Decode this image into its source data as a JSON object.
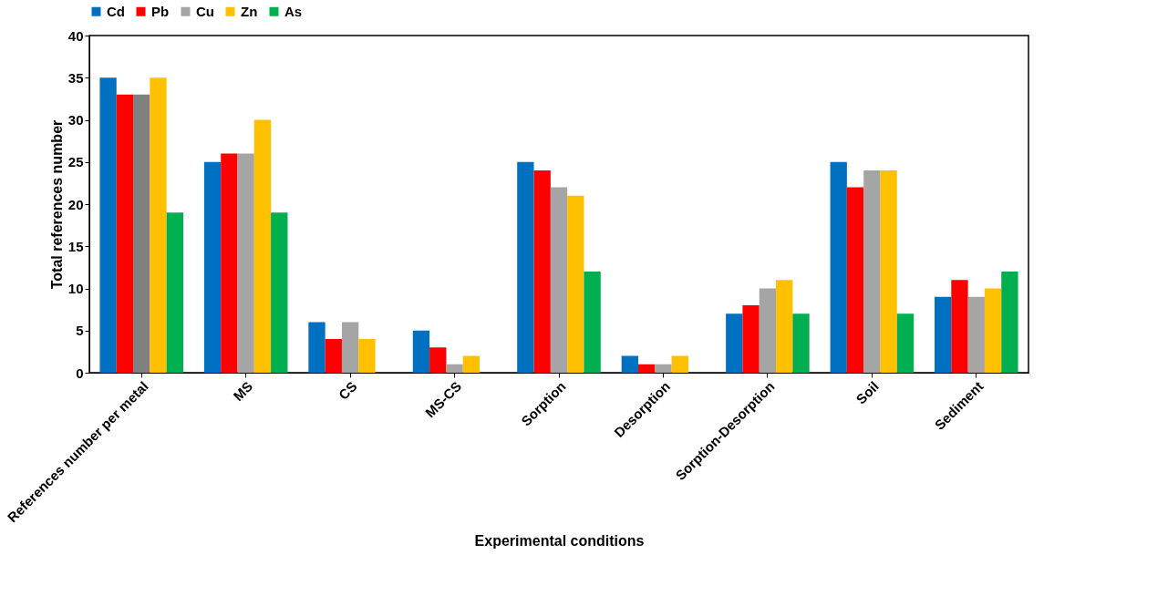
{
  "chart_data": {
    "type": "bar",
    "xlabel": "Experimental conditions",
    "ylabel": "Total references number",
    "categories": [
      "References number per metal",
      "MS",
      "CS",
      "MS-CS",
      "Sorption",
      "Desorption",
      "Sorption-Desorption",
      "Soil",
      "Sediment"
    ],
    "series": [
      {
        "name": "Cd",
        "color": "#0070c0",
        "values": [
          35,
          25,
          6,
          5,
          25,
          2,
          7,
          25,
          9
        ]
      },
      {
        "name": "Pb",
        "color": "#ff0000",
        "values": [
          33,
          26,
          4,
          3,
          24,
          1,
          8,
          22,
          11
        ]
      },
      {
        "name": "Cu",
        "color": "#a5a5a5",
        "colors": [
          "#808080",
          "#a5a5a5",
          "#a5a5a5",
          "#a5a5a5",
          "#a5a5a5",
          "#a5a5a5",
          "#a5a5a5",
          "#a5a5a5",
          "#a5a5a5"
        ],
        "values": [
          33,
          26,
          6,
          1,
          22,
          1,
          10,
          24,
          9
        ]
      },
      {
        "name": "Zn",
        "color": "#ffc000",
        "values": [
          35,
          30,
          4,
          2,
          21,
          2,
          11,
          24,
          10
        ]
      },
      {
        "name": "As",
        "color": "#00b050",
        "values": [
          19,
          19,
          null,
          null,
          12,
          null,
          7,
          7,
          12
        ]
      }
    ],
    "ylim": [
      0,
      40
    ],
    "yticks": [
      0,
      5,
      10,
      15,
      20,
      25,
      30,
      35,
      40
    ],
    "grid": false,
    "legend": "top"
  }
}
